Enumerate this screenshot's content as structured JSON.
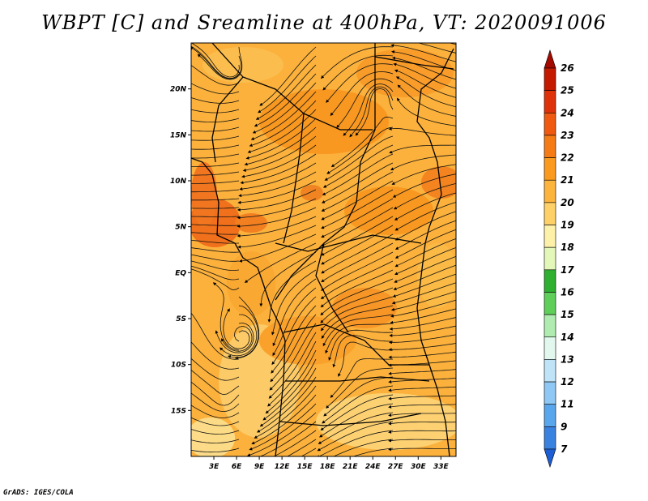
{
  "title": "WBPT [C] and Sreamline at 400hPa, VT: 2020091006",
  "credit": "GrADS: IGES/COLA",
  "chart_data": {
    "type": "heatmap",
    "title": "WBPT [C] and Sreamline at 400hPa, VT: 2020091006",
    "variable": "WBPT [C]",
    "overlay": "streamlines",
    "level": "400hPa",
    "valid_time": "2020091006",
    "xlim": [
      0,
      35
    ],
    "ylim": [
      -20,
      25
    ],
    "x_ticks": [
      {
        "value": 3,
        "label": "3E"
      },
      {
        "value": 6,
        "label": "6E"
      },
      {
        "value": 9,
        "label": "9E"
      },
      {
        "value": 12,
        "label": "12E"
      },
      {
        "value": 15,
        "label": "15E"
      },
      {
        "value": 18,
        "label": "18E"
      },
      {
        "value": 21,
        "label": "21E"
      },
      {
        "value": 24,
        "label": "24E"
      },
      {
        "value": 27,
        "label": "27E"
      },
      {
        "value": 30,
        "label": "30E"
      },
      {
        "value": 33,
        "label": "33E"
      }
    ],
    "y_ticks": [
      {
        "value": 20,
        "label": "20N"
      },
      {
        "value": 15,
        "label": "15N"
      },
      {
        "value": 10,
        "label": "10N"
      },
      {
        "value": 5,
        "label": "5N"
      },
      {
        "value": 0,
        "label": "EQ"
      },
      {
        "value": -5,
        "label": "5S"
      },
      {
        "value": -10,
        "label": "10S"
      },
      {
        "value": -15,
        "label": "15S"
      }
    ],
    "colorbar": {
      "levels": [
        "26",
        "25",
        "24",
        "23",
        "22",
        "21",
        "20",
        "19",
        "18",
        "17",
        "16",
        "15",
        "14",
        "13",
        "12",
        "11",
        "9",
        "7"
      ],
      "colors": [
        "#a50a00",
        "#c41a00",
        "#e0320a",
        "#ef5a10",
        "#f57c15",
        "#fa9a1e",
        "#fcb43c",
        "#fed068",
        "#fdf0a8",
        "#e2f7b8",
        "#2fb030",
        "#5fcf5a",
        "#b0ebb0",
        "#e2f8ee",
        "#bfe4f8",
        "#8fc8f4",
        "#5aa6ec",
        "#3a82e0",
        "#1e5ed4"
      ]
    }
  }
}
